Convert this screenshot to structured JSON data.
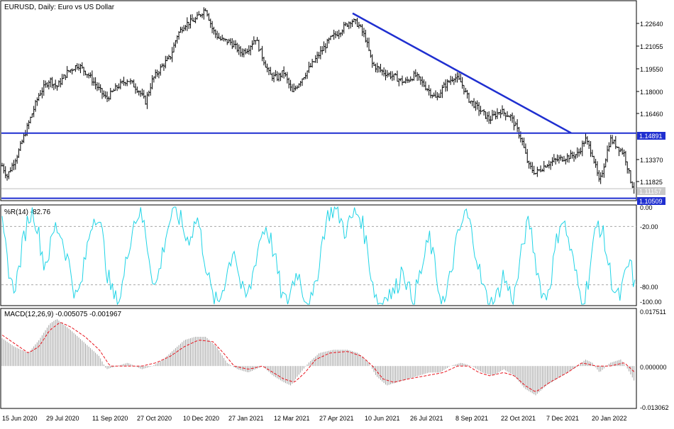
{
  "chart_data": [
    {
      "type": "candlestick",
      "title": "EURUSD, Daily:  Euro vs US Dollar",
      "y_ticks": [
        "1.22640",
        "1.21055",
        "1.19550",
        "1.18000",
        "1.16460",
        "1.14891",
        "1.13370",
        "1.11825",
        "1.11157",
        "1.10509"
      ],
      "ylim": [
        1.1035,
        1.2375
      ],
      "grid": false,
      "close_path": [
        [
          0,
          1.13
        ],
        [
          10,
          1.12
        ],
        [
          25,
          1.135
        ],
        [
          40,
          1.155
        ],
        [
          55,
          1.175
        ],
        [
          70,
          1.185
        ],
        [
          80,
          1.18
        ],
        [
          95,
          1.19
        ],
        [
          110,
          1.195
        ],
        [
          125,
          1.188
        ],
        [
          140,
          1.178
        ],
        [
          150,
          1.172
        ],
        [
          165,
          1.18
        ],
        [
          180,
          1.185
        ],
        [
          195,
          1.178
        ],
        [
          205,
          1.17
        ],
        [
          215,
          1.185
        ],
        [
          230,
          1.195
        ],
        [
          240,
          1.2
        ],
        [
          250,
          1.215
        ],
        [
          260,
          1.222
        ],
        [
          275,
          1.225
        ],
        [
          290,
          1.233
        ],
        [
          300,
          1.218
        ],
        [
          310,
          1.212
        ],
        [
          325,
          1.21
        ],
        [
          340,
          1.203
        ],
        [
          350,
          1.206
        ],
        [
          360,
          1.213
        ],
        [
          370,
          1.2
        ],
        [
          380,
          1.188
        ],
        [
          390,
          1.186
        ],
        [
          400,
          1.19
        ],
        [
          412,
          1.176
        ],
        [
          420,
          1.182
        ],
        [
          435,
          1.192
        ],
        [
          450,
          1.202
        ],
        [
          465,
          1.212
        ],
        [
          480,
          1.218
        ],
        [
          495,
          1.225
        ],
        [
          505,
          1.222
        ],
        [
          515,
          1.213
        ],
        [
          525,
          1.195
        ],
        [
          540,
          1.19
        ],
        [
          555,
          1.187
        ],
        [
          570,
          1.183
        ],
        [
          585,
          1.188
        ],
        [
          600,
          1.18
        ],
        [
          615,
          1.172
        ],
        [
          625,
          1.18
        ],
        [
          640,
          1.187
        ],
        [
          650,
          1.183
        ],
        [
          660,
          1.172
        ],
        [
          675,
          1.165
        ],
        [
          690,
          1.158
        ],
        [
          705,
          1.164
        ],
        [
          720,
          1.16
        ],
        [
          735,
          1.145
        ],
        [
          745,
          1.127
        ],
        [
          755,
          1.122
        ],
        [
          770,
          1.128
        ],
        [
          785,
          1.131
        ],
        [
          800,
          1.133
        ],
        [
          815,
          1.135
        ],
        [
          825,
          1.145
        ],
        [
          835,
          1.135
        ],
        [
          845,
          1.115
        ],
        [
          860,
          1.145
        ],
        [
          870,
          1.14
        ],
        [
          880,
          1.135
        ],
        [
          890,
          1.115
        ],
        [
          895,
          1.1115
        ]
      ],
      "trendline": {
        "x": [
          497,
          805
        ],
        "y": [
          1.2295,
          1.149
        ],
        "color": "#1f2fd0"
      },
      "hlines": [
        {
          "value": 1.14891,
          "label": "1.14891",
          "color": "#1f2fd0"
        },
        {
          "value": 1.10509,
          "label": "1.10509",
          "color": "#1f2fd0"
        },
        {
          "value": 1.11157,
          "label": "1.11157",
          "color": "#bdbdbd"
        }
      ]
    },
    {
      "type": "line",
      "title": "%R(14) -82.76",
      "y_ticks": [
        "0.00",
        "-20.00",
        "-80.00",
        "-100.00"
      ],
      "ylim": [
        -100,
        0
      ],
      "dashed_levels": [
        -20,
        -80
      ],
      "color": "#20d4e6",
      "values": [
        -20,
        -55,
        -85,
        -70,
        -35,
        -10,
        -5,
        -30,
        -60,
        -45,
        -20,
        -25,
        -45,
        -65,
        -95,
        -80,
        -45,
        -15,
        -5,
        -30,
        -70,
        -90,
        -100,
        -75,
        -40,
        -15,
        -5,
        -20,
        -55,
        -85,
        -60,
        -30,
        -10,
        -5,
        -15,
        -35,
        -25,
        -10,
        -40,
        -70,
        -95,
        -100,
        -80,
        -60,
        -40,
        -75,
        -95,
        -85,
        -55,
        -30,
        -20,
        -35,
        -60,
        -90,
        -100,
        -80,
        -65,
        -85,
        -100,
        -95,
        -60,
        -25,
        -5,
        -2,
        -10,
        -25,
        -15,
        -5,
        -10,
        -35,
        -70,
        -95,
        -100,
        -85,
        -90,
        -80,
        -60,
        -85,
        -95,
        -75,
        -55,
        -30,
        -60,
        -90,
        -100,
        -70,
        -40,
        -20,
        -5,
        -25,
        -50,
        -80,
        -95,
        -100,
        -90,
        -70,
        -85,
        -95,
        -65,
        -30,
        -15,
        -50,
        -80,
        -95,
        -75,
        -40,
        -10,
        -25,
        -50,
        -75,
        -100,
        -80,
        -40,
        -15,
        -30,
        -60,
        -85,
        -95,
        -75,
        -55,
        -82.76
      ]
    },
    {
      "type": "bar+line",
      "title": "MACD(12,26,9) -0.005075 -0.001967",
      "y_ticks": [
        "0.017511",
        "0.000000",
        "-0.013062"
      ],
      "ylim": [
        -0.013062,
        0.017511
      ],
      "histogram_color": "#a0a0a0",
      "signal_color": "#e8141d",
      "macd_path": [
        [
          0,
          0.009
        ],
        [
          20,
          0.006
        ],
        [
          40,
          0.004
        ],
        [
          55,
          0.008
        ],
        [
          70,
          0.013
        ],
        [
          80,
          0.0145
        ],
        [
          100,
          0.011
        ],
        [
          120,
          0.007
        ],
        [
          140,
          0.003
        ],
        [
          150,
          -0.001
        ],
        [
          165,
          0.0
        ],
        [
          180,
          0.001
        ],
        [
          200,
          -0.001
        ],
        [
          215,
          0.0
        ],
        [
          230,
          0.002
        ],
        [
          245,
          0.005
        ],
        [
          260,
          0.008
        ],
        [
          275,
          0.009
        ],
        [
          290,
          0.009
        ],
        [
          305,
          0.006
        ],
        [
          320,
          0.001
        ],
        [
          335,
          -0.001
        ],
        [
          350,
          -0.002
        ],
        [
          370,
          0.0
        ],
        [
          385,
          -0.003
        ],
        [
          400,
          -0.005
        ],
        [
          410,
          -0.006
        ],
        [
          420,
          -0.003
        ],
        [
          435,
          0.001
        ],
        [
          450,
          0.004
        ],
        [
          470,
          0.005
        ],
        [
          490,
          0.005
        ],
        [
          505,
          0.004
        ],
        [
          520,
          0.001
        ],
        [
          530,
          -0.003
        ],
        [
          545,
          -0.006
        ],
        [
          560,
          -0.005
        ],
        [
          575,
          -0.004
        ],
        [
          590,
          -0.003
        ],
        [
          605,
          -0.002
        ],
        [
          620,
          -0.002
        ],
        [
          635,
          0.0
        ],
        [
          650,
          0.001
        ],
        [
          665,
          0.0
        ],
        [
          680,
          -0.002
        ],
        [
          695,
          -0.003
        ],
        [
          710,
          -0.001
        ],
        [
          725,
          -0.003
        ],
        [
          740,
          -0.007
        ],
        [
          755,
          -0.009
        ],
        [
          770,
          -0.006
        ],
        [
          785,
          -0.004
        ],
        [
          800,
          -0.002
        ],
        [
          815,
          0.0
        ],
        [
          825,
          0.002
        ],
        [
          835,
          0.001
        ],
        [
          845,
          -0.002
        ],
        [
          860,
          0.001
        ],
        [
          875,
          0.002
        ],
        [
          885,
          -0.001
        ],
        [
          895,
          -0.005
        ]
      ],
      "signal_path": [
        [
          0,
          0.01
        ],
        [
          20,
          0.007
        ],
        [
          40,
          0.004
        ],
        [
          55,
          0.006
        ],
        [
          70,
          0.011
        ],
        [
          85,
          0.0135
        ],
        [
          100,
          0.012
        ],
        [
          120,
          0.009
        ],
        [
          140,
          0.005
        ],
        [
          155,
          0.0
        ],
        [
          175,
          0.0
        ],
        [
          200,
          0.0
        ],
        [
          220,
          0.001
        ],
        [
          240,
          0.003
        ],
        [
          260,
          0.006
        ],
        [
          280,
          0.008
        ],
        [
          300,
          0.0075
        ],
        [
          315,
          0.004
        ],
        [
          330,
          0.0
        ],
        [
          350,
          -0.001
        ],
        [
          370,
          0.0
        ],
        [
          385,
          -0.002
        ],
        [
          400,
          -0.004
        ],
        [
          415,
          -0.005
        ],
        [
          430,
          -0.002
        ],
        [
          445,
          0.002
        ],
        [
          465,
          0.004
        ],
        [
          490,
          0.0045
        ],
        [
          510,
          0.003
        ],
        [
          525,
          0.0
        ],
        [
          540,
          -0.004
        ],
        [
          555,
          -0.005
        ],
        [
          575,
          -0.004
        ],
        [
          600,
          -0.003
        ],
        [
          625,
          -0.002
        ],
        [
          645,
          0.0
        ],
        [
          660,
          0.0
        ],
        [
          675,
          -0.002
        ],
        [
          690,
          -0.003
        ],
        [
          710,
          -0.002
        ],
        [
          725,
          -0.003
        ],
        [
          740,
          -0.006
        ],
        [
          755,
          -0.008
        ],
        [
          775,
          -0.005
        ],
        [
          800,
          -0.002
        ],
        [
          820,
          0.001
        ],
        [
          840,
          0.0
        ],
        [
          860,
          0.0
        ],
        [
          880,
          0.001
        ],
        [
          895,
          -0.002
        ]
      ]
    }
  ],
  "x_labels": [
    "15 Jun 2020",
    "29 Jul 2020",
    "11 Sep 2020",
    "27 Oct 2020",
    "10 Dec 2020",
    "27 Jan 2021",
    "12 Mar 2021",
    "27 Apr 2021",
    "10 Jun 2021",
    "26 Jul 2021",
    "8 Sep 2021",
    "22 Oct 2021",
    "7 Dec 2021",
    "20 Jan 2022"
  ]
}
